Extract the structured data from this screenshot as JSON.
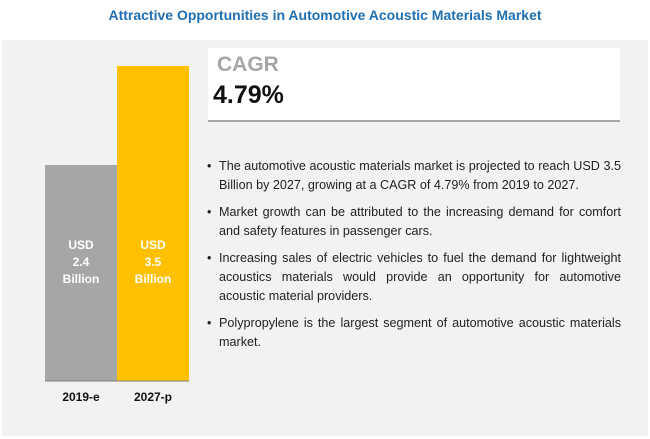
{
  "title": "Attractive Opportunities in Automotive Acoustic Materials Market",
  "cagr": {
    "label": "CAGR",
    "value": "4.79%"
  },
  "bullets": [
    "The automotive acoustic materials market is projected to reach USD 3.5 Billion by 2027, growing at a CAGR of 4.79% from 2019 to 2027.",
    "Market growth can be attributed to the increasing demand for comfort and safety features in passenger cars.",
    "Increasing sales of electric vehicles to fuel the demand for lightweight acoustics materials would provide an opportunity for automotive acoustic material providers.",
    "Polypropylene is the largest segment of automotive acoustic materials market."
  ],
  "chart_data": {
    "type": "bar",
    "categories": [
      "2019-e",
      "2027-p"
    ],
    "values": [
      2.4,
      3.5
    ],
    "labels": [
      [
        "USD",
        "2.4",
        "Billion"
      ],
      [
        "USD",
        "3.5",
        "Billion"
      ]
    ],
    "colors": [
      "#a6a6a6",
      "#ffc000"
    ],
    "unit": "USD Billion",
    "ylim": [
      0,
      3.5
    ]
  }
}
